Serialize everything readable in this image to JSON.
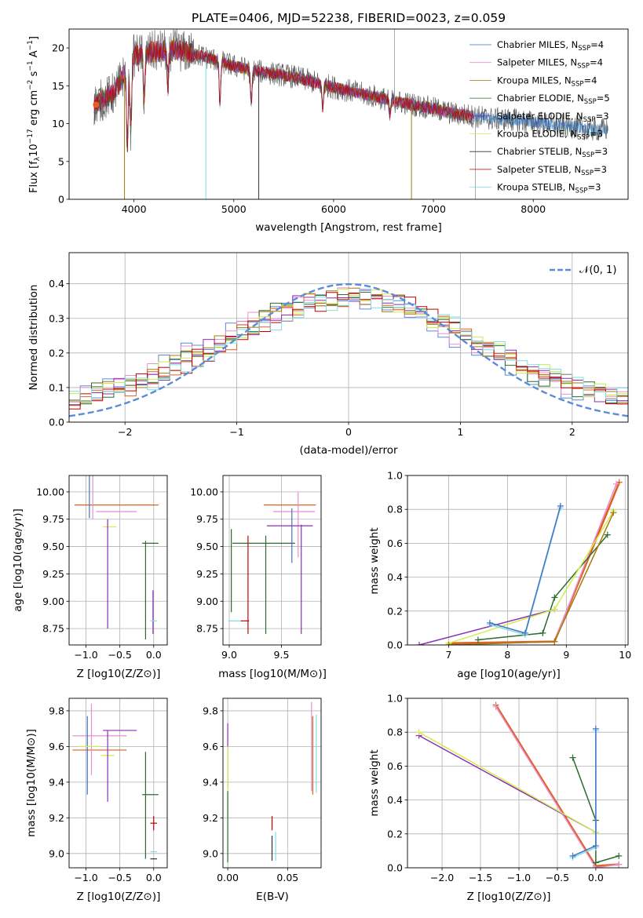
{
  "chart_data": [
    {
      "id": "spectrum",
      "type": "line",
      "title": "PLATE=0406, MJD=52238, FIBERID=0023, z=0.059",
      "xlabel": "wavelength [Angstrom, rest frame]",
      "ylabel": "Flux [f_λ 10^-17 erg cm^-2 s^-1 A^-1]",
      "xlim": [
        3350,
        8950
      ],
      "ylim": [
        0,
        22.5
      ],
      "xticks": [
        4000,
        5000,
        6000,
        7000,
        8000
      ],
      "yticks": [
        0,
        5,
        10,
        15,
        20
      ],
      "grid": false,
      "legend_position": "top-right",
      "continuum_x": [
        3600,
        3800,
        4000,
        4200,
        4400,
        4600,
        4800,
        5000,
        5200,
        5400,
        5600,
        5800,
        6000,
        6200,
        6400,
        6600,
        6800,
        7000,
        7200,
        7400,
        7600,
        7800,
        8000,
        8200,
        8400,
        8600
      ],
      "continuum_y": [
        12.5,
        14,
        19,
        19.5,
        19.8,
        19.2,
        18.5,
        17.6,
        17,
        16.6,
        16.2,
        15.5,
        14.8,
        14.2,
        13.6,
        13,
        12.5,
        12,
        11.3,
        11,
        10.6,
        10.5,
        10.2,
        9.9,
        9.6,
        9.2
      ],
      "series": [
        {
          "name": "Chabrier MILES",
          "nssp": "4",
          "color": "#4472c4"
        },
        {
          "name": "Salpeter MILES",
          "nssp": "4",
          "color": "#e88fd0"
        },
        {
          "name": "Kroupa MILES",
          "nssp": "4",
          "color": "#a07b10"
        },
        {
          "name": "Chabrier ELODIE",
          "nssp": "5",
          "color": "#2e6b2e"
        },
        {
          "name": "Salpeter ELODIE",
          "nssp": "3",
          "color": "#8b2fb5"
        },
        {
          "name": "Kroupa ELODIE",
          "nssp": "3",
          "color": "#d4ec4c"
        },
        {
          "name": "Chabrier STELIB",
          "nssp": "3",
          "color": "#333333"
        },
        {
          "name": "Salpeter STELIB",
          "nssp": "3",
          "color": "#c00000"
        },
        {
          "name": "Kroupa STELIB",
          "nssp": "3",
          "color": "#7fdde6"
        }
      ]
    },
    {
      "id": "residuals",
      "type": "line",
      "xlabel": "(data-model)/error",
      "ylabel": "Normed distribution",
      "xlim": [
        -2.5,
        2.5
      ],
      "ylim": [
        0,
        0.49
      ],
      "xticks": [
        -2,
        -1,
        0,
        1,
        2
      ],
      "yticks": [
        0.0,
        0.1,
        0.2,
        0.3,
        0.4
      ],
      "grid": true,
      "legend_position": "top-right",
      "normal_label": "𝒩(0, 1)",
      "normal_color": "#5b8bd6",
      "step_colors": [
        "#5b8bd6",
        "#e88fd0",
        "#a07b10",
        "#2e6b2e",
        "#8b2fb5",
        "#c8ec4c",
        "#e06020",
        "#c00000",
        "#7fdde6"
      ]
    },
    {
      "id": "age_vs_Z",
      "type": "scatter",
      "xlabel": "Z [log10(Z/Z⊙)]",
      "ylabel": "age  [log10(age/yr)]",
      "xlim": [
        -1.25,
        0.2
      ],
      "ylim": [
        8.6,
        10.15
      ],
      "xticks": [
        -1.0,
        -0.5,
        0.0
      ],
      "yticks": [
        8.75,
        9.0,
        9.25,
        9.5,
        9.75,
        10.0
      ],
      "grid": true,
      "points": [
        {
          "x": -0.55,
          "y": 9.88,
          "xerr": 0.62,
          "yerr": 0.0,
          "color": "#e06020"
        },
        {
          "x": -0.95,
          "y": 9.98,
          "xerr": 0.0,
          "yerr": 0.22,
          "color": "#4472c4"
        },
        {
          "x": -0.9,
          "y": 9.97,
          "xerr": 0.0,
          "yerr": 0.22,
          "color": "#e88fd0"
        },
        {
          "x": -0.55,
          "y": 9.82,
          "xerr": 0.3,
          "yerr": 0.0,
          "color": "#e88fd0"
        },
        {
          "x": -0.65,
          "y": 9.68,
          "xerr": 0.1,
          "yerr": 0.0,
          "color": "#d4ec4c"
        },
        {
          "x": -0.68,
          "y": 9.25,
          "xerr": 0.0,
          "yerr": 0.5,
          "color": "#8b2fb5"
        },
        {
          "x": -0.05,
          "y": 9.53,
          "xerr": 0.12,
          "yerr": 0.0,
          "color": "#2e6b2e"
        },
        {
          "x": -0.12,
          "y": 9.1,
          "xerr": 0.0,
          "yerr": 0.45,
          "color": "#2e6b2e"
        },
        {
          "x": -0.01,
          "y": 8.9,
          "xerr": 0.0,
          "yerr": 0.2,
          "color": "#8b2fb5"
        },
        {
          "x": 0.0,
          "y": 8.82,
          "xerr": 0.05,
          "yerr": 0.0,
          "color": "#7fdde6"
        }
      ]
    },
    {
      "id": "age_vs_mass",
      "type": "scatter",
      "xlabel": "mass [log10(M/M⊙)]",
      "ylabel": "",
      "xlim": [
        8.94,
        9.88
      ],
      "ylim": [
        8.6,
        10.15
      ],
      "xticks": [
        9.0,
        9.5
      ],
      "yticks": [
        8.75,
        9.0,
        9.25,
        9.5,
        9.75,
        10.0
      ],
      "grid": true,
      "points": [
        {
          "x": 9.02,
          "y": 9.28,
          "xerr": 0.0,
          "yerr": 0.38,
          "color": "#2e6b2e"
        },
        {
          "x": 9.05,
          "y": 8.82,
          "xerr": 0.06,
          "yerr": 0.0,
          "color": "#7fdde6"
        },
        {
          "x": 9.15,
          "y": 8.82,
          "xerr": 0.04,
          "yerr": 0.0,
          "color": "#c00000"
        },
        {
          "x": 9.18,
          "y": 9.15,
          "xerr": 0.0,
          "yerr": 0.45,
          "color": "#c00000"
        },
        {
          "x": 9.33,
          "y": 9.53,
          "xerr": 0.3,
          "yerr": 0.0,
          "color": "#2e6b2e"
        },
        {
          "x": 9.35,
          "y": 9.15,
          "xerr": 0.0,
          "yerr": 0.45,
          "color": "#2e6b2e"
        },
        {
          "x": 9.58,
          "y": 9.88,
          "xerr": 0.25,
          "yerr": 0.0,
          "color": "#e06020"
        },
        {
          "x": 9.62,
          "y": 9.82,
          "xerr": 0.2,
          "yerr": 0.0,
          "color": "#e88fd0"
        },
        {
          "x": 9.6,
          "y": 9.6,
          "xerr": 0.0,
          "yerr": 0.25,
          "color": "#4472c4"
        },
        {
          "x": 9.66,
          "y": 9.7,
          "xerr": 0.0,
          "yerr": 0.3,
          "color": "#e88fd0"
        },
        {
          "x": 9.58,
          "y": 9.69,
          "xerr": 0.22,
          "yerr": 0.0,
          "color": "#8b2fb5"
        },
        {
          "x": 9.69,
          "y": 9.2,
          "xerr": 0.0,
          "yerr": 0.5,
          "color": "#8b2fb5"
        }
      ]
    },
    {
      "id": "weight_vs_age",
      "type": "line",
      "xlabel": "age  [log10(age/yr)]",
      "ylabel": "mass weight",
      "xlim": [
        6.3,
        10.05
      ],
      "ylim": [
        0,
        1.0
      ],
      "xticks": [
        7,
        8,
        9,
        10
      ],
      "yticks": [
        0.0,
        0.2,
        0.4,
        0.6,
        0.8,
        1.0
      ],
      "grid": true,
      "series": [
        {
          "color": "#e06020",
          "x": [
            7.0,
            8.8,
            9.9
          ],
          "y": [
            0.01,
            0.02,
            0.96
          ]
        },
        {
          "color": "#e88fd0",
          "x": [
            7.0,
            8.8,
            9.85
          ],
          "y": [
            0.0,
            0.02,
            0.95
          ]
        },
        {
          "color": "#2e6b2e",
          "x": [
            7.5,
            8.6,
            8.8,
            9.7
          ],
          "y": [
            0.03,
            0.07,
            0.28,
            0.65
          ]
        },
        {
          "color": "#8b2fb5",
          "x": [
            6.5,
            8.8
          ],
          "y": [
            0.0,
            0.21
          ]
        },
        {
          "color": "#d4ec4c",
          "x": [
            7.0,
            8.8,
            9.8
          ],
          "y": [
            0.01,
            0.21,
            0.79
          ]
        },
        {
          "color": "#a07b10",
          "x": [
            7.0,
            8.8,
            9.8
          ],
          "y": [
            0.0,
            0.02,
            0.78
          ]
        },
        {
          "color": "#7fdde6",
          "x": [
            7.7,
            8.3,
            8.9
          ],
          "y": [
            0.12,
            0.06,
            0.81
          ]
        },
        {
          "color": "#4472c4",
          "x": [
            7.7,
            8.3,
            8.9
          ],
          "y": [
            0.13,
            0.07,
            0.82
          ]
        }
      ]
    },
    {
      "id": "mass_vs_Z",
      "type": "scatter",
      "xlabel": "Z [log10(Z/Z⊙)]",
      "ylabel": "mass [log10(M/M⊙)]",
      "xlim": [
        -1.25,
        0.2
      ],
      "ylim": [
        8.92,
        9.87
      ],
      "xticks": [
        -1.0,
        -0.5,
        0.0
      ],
      "yticks": [
        9.0,
        9.2,
        9.4,
        9.6,
        9.8
      ],
      "grid": true,
      "points": [
        {
          "x": -0.8,
          "y": 9.66,
          "xerr": 0.4,
          "yerr": 0.0,
          "color": "#e88fd0"
        },
        {
          "x": -0.5,
          "y": 9.69,
          "xerr": 0.25,
          "yerr": 0.0,
          "color": "#8b2fb5"
        },
        {
          "x": -0.8,
          "y": 9.58,
          "xerr": 0.4,
          "yerr": 0.0,
          "color": "#e06020"
        },
        {
          "x": -0.98,
          "y": 9.55,
          "xerr": 0.0,
          "yerr": 0.22,
          "color": "#4472c4"
        },
        {
          "x": -0.92,
          "y": 9.64,
          "xerr": 0.0,
          "yerr": 0.2,
          "color": "#e88fd0"
        },
        {
          "x": -0.95,
          "y": 9.6,
          "xerr": 0.15,
          "yerr": 0.0,
          "color": "#d4ec4c"
        },
        {
          "x": -0.68,
          "y": 9.55,
          "xerr": 0.1,
          "yerr": 0.0,
          "color": "#d4ec4c"
        },
        {
          "x": -0.68,
          "y": 9.49,
          "xerr": 0.0,
          "yerr": 0.2,
          "color": "#8b2fb5"
        },
        {
          "x": -0.05,
          "y": 9.33,
          "xerr": 0.12,
          "yerr": 0.0,
          "color": "#2e6b2e"
        },
        {
          "x": -0.12,
          "y": 9.27,
          "xerr": 0.0,
          "yerr": 0.3,
          "color": "#2e6b2e"
        },
        {
          "x": 0.0,
          "y": 9.17,
          "xerr": 0.05,
          "yerr": 0.04,
          "color": "#c00000"
        },
        {
          "x": 0.0,
          "y": 9.01,
          "xerr": 0.05,
          "yerr": 0.0,
          "color": "#7fdde6"
        },
        {
          "x": 0.0,
          "y": 8.97,
          "xerr": 0.05,
          "yerr": 0.0,
          "color": "#333333"
        }
      ]
    },
    {
      "id": "mass_vs_ebv",
      "type": "scatter",
      "xlabel": "E(B-V)",
      "ylabel": "",
      "xlim": [
        -0.004,
        0.078
      ],
      "ylim": [
        8.92,
        9.87
      ],
      "xticks": [
        0.0,
        0.05
      ],
      "xtick_labels": [
        "0.00",
        "0.05"
      ],
      "yticks": [
        9.0,
        9.2,
        9.4,
        9.6,
        9.8
      ],
      "grid": true,
      "points": [
        {
          "x": 0.0,
          "y": 9.55,
          "xerr": 0.0,
          "yerr": 0.18,
          "color": "#8b2fb5"
        },
        {
          "x": 0.0,
          "y": 9.4,
          "xerr": 0.0,
          "yerr": 0.2,
          "color": "#d4ec4c"
        },
        {
          "x": 0.0,
          "y": 9.15,
          "xerr": 0.0,
          "yerr": 0.2,
          "color": "#2e6b2e"
        },
        {
          "x": 0.037,
          "y": 9.17,
          "xerr": 0.0,
          "yerr": 0.04,
          "color": "#c00000"
        },
        {
          "x": 0.037,
          "y": 9.03,
          "xerr": 0.0,
          "yerr": 0.07,
          "color": "#333333"
        },
        {
          "x": 0.04,
          "y": 9.04,
          "xerr": 0.0,
          "yerr": 0.08,
          "color": "#7fdde6"
        },
        {
          "x": 0.07,
          "y": 9.6,
          "xerr": 0.0,
          "yerr": 0.25,
          "color": "#e88fd0"
        },
        {
          "x": 0.071,
          "y": 9.55,
          "xerr": 0.0,
          "yerr": 0.22,
          "color": "#e06020"
        },
        {
          "x": 0.074,
          "y": 9.56,
          "xerr": 0.0,
          "yerr": 0.22,
          "color": "#7fdde6"
        }
      ]
    },
    {
      "id": "weight_vs_Z",
      "type": "line",
      "xlabel": "Z [log10(Z/Z⊙)]",
      "ylabel": "mass weight",
      "xlim": [
        -2.45,
        0.42
      ],
      "ylim": [
        0,
        1.0
      ],
      "xticks": [
        -2.0,
        -1.5,
        -1.0,
        -0.5,
        0.0
      ],
      "yticks": [
        0.0,
        0.2,
        0.4,
        0.6,
        0.8,
        1.0
      ],
      "grid": true,
      "series": [
        {
          "color": "#e06020",
          "x": [
            -1.3,
            0.0,
            0.3
          ],
          "y": [
            0.96,
            0.01,
            0.02
          ]
        },
        {
          "color": "#e88fd0",
          "x": [
            -1.3,
            0.0,
            0.3
          ],
          "y": [
            0.95,
            0.0,
            0.02
          ]
        },
        {
          "color": "#2e6b2e",
          "x": [
            -0.3,
            0.0,
            0.0,
            0.3
          ],
          "y": [
            0.65,
            0.28,
            0.03,
            0.07
          ]
        },
        {
          "color": "#8b2fb5",
          "x": [
            -2.3,
            0.0
          ],
          "y": [
            0.78,
            0.21
          ]
        },
        {
          "color": "#d4ec4c",
          "x": [
            -2.3,
            0.0
          ],
          "y": [
            0.8,
            0.21
          ]
        },
        {
          "color": "#7fdde6",
          "x": [
            0.0,
            0.0,
            -0.3
          ],
          "y": [
            0.81,
            0.12,
            0.06
          ]
        },
        {
          "color": "#4472c4",
          "x": [
            0.0,
            0.0,
            -0.3
          ],
          "y": [
            0.82,
            0.13,
            0.07
          ]
        }
      ]
    }
  ]
}
